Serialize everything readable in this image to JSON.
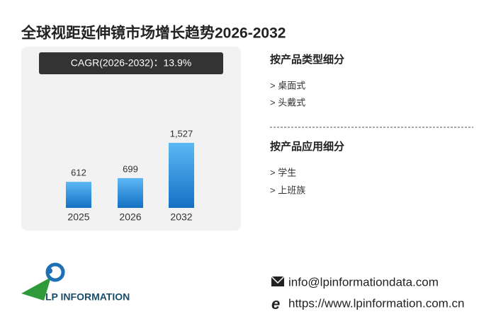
{
  "chart_data": {
    "type": "bar",
    "title": "全球视距延伸镜市场增长趋势2026-2032",
    "annotation": "CAGR(2026-2032)：13.9%",
    "categories": [
      "2025",
      "2026",
      "2032"
    ],
    "values": [
      612,
      699,
      1527
    ],
    "value_labels": [
      "612",
      "699",
      "1,527"
    ],
    "color": "#2b8ae0"
  },
  "sidebar": {
    "sections": [
      {
        "heading": "按产品类型细分",
        "items": [
          "> 桌面式",
          "> 头戴式"
        ]
      },
      {
        "heading": "按产品应用细分",
        "items": [
          "> 学生",
          "> 上班族"
        ]
      }
    ]
  },
  "logo": {
    "text": "LP INFORMATION"
  },
  "contact": {
    "email": "info@lpinformationdata.com",
    "website": "https://www.lpinformation.com.cn"
  }
}
